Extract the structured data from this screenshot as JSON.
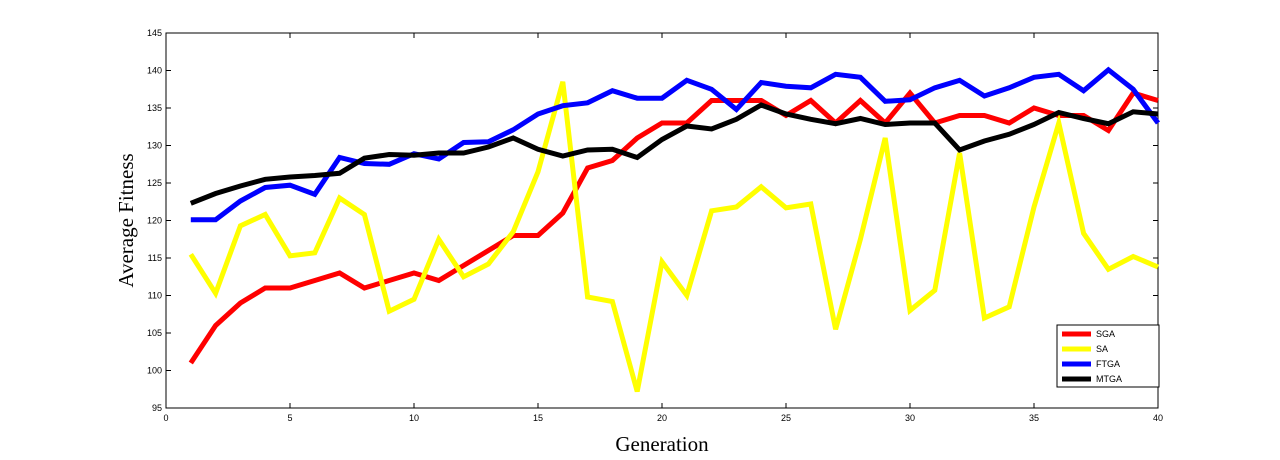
{
  "chart_data": {
    "type": "line",
    "xlabel": "Generation",
    "ylabel": "Average Fitness",
    "xlim": [
      0,
      40
    ],
    "ylim": [
      95,
      145
    ],
    "xticks": [
      0,
      5,
      10,
      15,
      20,
      25,
      30,
      35,
      40
    ],
    "yticks": [
      95,
      100,
      105,
      110,
      115,
      120,
      125,
      130,
      135,
      140,
      145
    ],
    "grid": false,
    "legend_position": "bottom-right",
    "x": [
      1,
      2,
      3,
      4,
      5,
      6,
      7,
      8,
      9,
      10,
      11,
      12,
      13,
      14,
      15,
      16,
      17,
      18,
      19,
      20,
      21,
      22,
      23,
      24,
      25,
      26,
      27,
      28,
      29,
      30,
      31,
      32,
      33,
      34,
      35,
      36,
      37,
      38,
      39,
      40
    ],
    "series": [
      {
        "name": "SGA",
        "color": "#ff0000",
        "values": [
          101,
          106,
          109,
          111,
          111,
          112,
          113,
          111,
          112,
          113,
          112,
          114,
          116,
          118,
          118,
          121,
          127,
          128,
          131,
          133,
          133,
          136,
          136,
          136,
          134,
          136,
          133,
          136,
          133,
          137,
          133,
          134,
          134,
          133,
          135,
          134,
          134,
          132,
          137,
          136
        ]
      },
      {
        "name": "SA",
        "color": "#ffff00",
        "values": [
          115.5,
          110.3,
          119.3,
          120.8,
          115.3,
          115.7,
          123,
          120.8,
          107.9,
          109.5,
          117.5,
          112.5,
          114.2,
          118.5,
          126.5,
          138.5,
          109.8,
          109.2,
          97.2,
          114.5,
          110,
          121.3,
          121.8,
          124.5,
          121.7,
          122.2,
          105.5,
          117.5,
          131,
          108,
          110.7,
          129,
          107,
          108.5,
          121.8,
          133,
          118.3,
          113.5,
          115.2,
          113.8
        ]
      },
      {
        "name": "FTGA",
        "color": "#0000ff",
        "values": [
          120.1,
          120.1,
          122.6,
          124.4,
          124.7,
          123.5,
          128.4,
          127.6,
          127.5,
          128.9,
          128.2,
          130.4,
          130.5,
          132.1,
          134.2,
          135.3,
          135.7,
          137.3,
          136.3,
          136.3,
          138.7,
          137.5,
          134.8,
          138.4,
          137.9,
          137.7,
          139.5,
          139.1,
          135.9,
          136.1,
          137.7,
          138.7,
          136.6,
          137.7,
          139.1,
          139.5,
          137.3,
          140.1,
          137.5,
          133
        ]
      },
      {
        "name": "MTGA",
        "color": "#000000",
        "values": [
          122.3,
          123.6,
          124.6,
          125.5,
          125.8,
          126,
          126.3,
          128.3,
          128.8,
          128.7,
          129,
          129,
          129.8,
          131,
          129.5,
          128.6,
          129.4,
          129.5,
          128.4,
          130.8,
          132.6,
          132.2,
          133.5,
          135.4,
          134.2,
          133.5,
          132.9,
          133.6,
          132.8,
          133,
          133,
          129.4,
          130.6,
          131.5,
          132.8,
          134.4,
          133.6,
          132.9,
          134.5,
          134.2
        ]
      }
    ]
  }
}
